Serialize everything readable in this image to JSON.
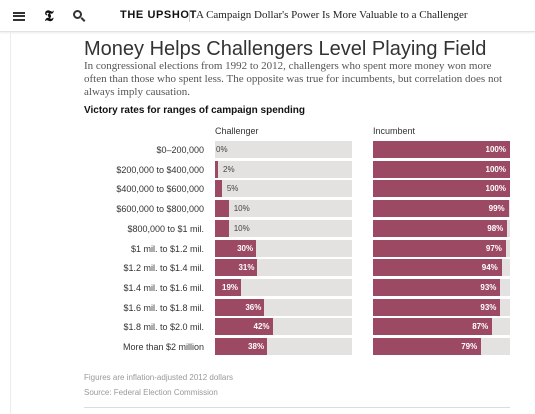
{
  "header": {
    "logo_glyph": "𝕿",
    "section_label": "THE UPSHOT",
    "headline": "A Campaign Dollar's Power Is More Valuable to a Challenger",
    "icons": [
      "menu-icon",
      "nyt-logo-icon",
      "search-icon"
    ]
  },
  "article": {
    "title": "Money Helps Challengers Level Playing Field",
    "dek": "In congressional elections from 1992 to 2012, challengers who spent more money won more often than those who spent less. The opposite was true for incumbents, but correlation does not always imply causation.",
    "chart_heading": "Victory rates for ranges of campaign spending",
    "note": "Figures are inflation-adjusted 2012 dollars",
    "source": "Source: Federal Election Commission"
  },
  "colors": {
    "bar": "#9c4a64",
    "track": "#e4e2e0"
  },
  "chart_data": {
    "type": "bar",
    "orientation": "horizontal",
    "title": "Victory rates for ranges of campaign spending",
    "categories": [
      "$0–200,000",
      "$200,000 to $400,000",
      "$400,000 to $600,000",
      "$600,000 to $800,000",
      "$800,000 to $1 mil.",
      "$1 mil. to $1.2 mil.",
      "$1.2 mil. to $1.4 mil.",
      "$1.4 mil. to $1.6 mil.",
      "$1.6 mil. to $1.8 mil.",
      "$1.8 mil. to $2.0 mil.",
      "More than $2 million"
    ],
    "series": [
      {
        "name": "Challenger",
        "values": [
          0,
          2,
          5,
          10,
          10,
          30,
          31,
          19,
          36,
          42,
          38
        ],
        "labels": [
          "0%",
          "2%",
          "5%",
          "10%",
          "10%",
          "30%",
          "31%",
          "19%",
          "36%",
          "42%",
          "38%"
        ]
      },
      {
        "name": "Incumbent",
        "values": [
          100,
          100,
          100,
          99,
          98,
          97,
          94,
          93,
          93,
          87,
          79
        ],
        "labels": [
          "100%",
          "100%",
          "100%",
          "99%",
          "98%",
          "97%",
          "94%",
          "93%",
          "93%",
          "87%",
          "79%"
        ]
      }
    ],
    "xlim": [
      0,
      100
    ],
    "unit": "%"
  }
}
